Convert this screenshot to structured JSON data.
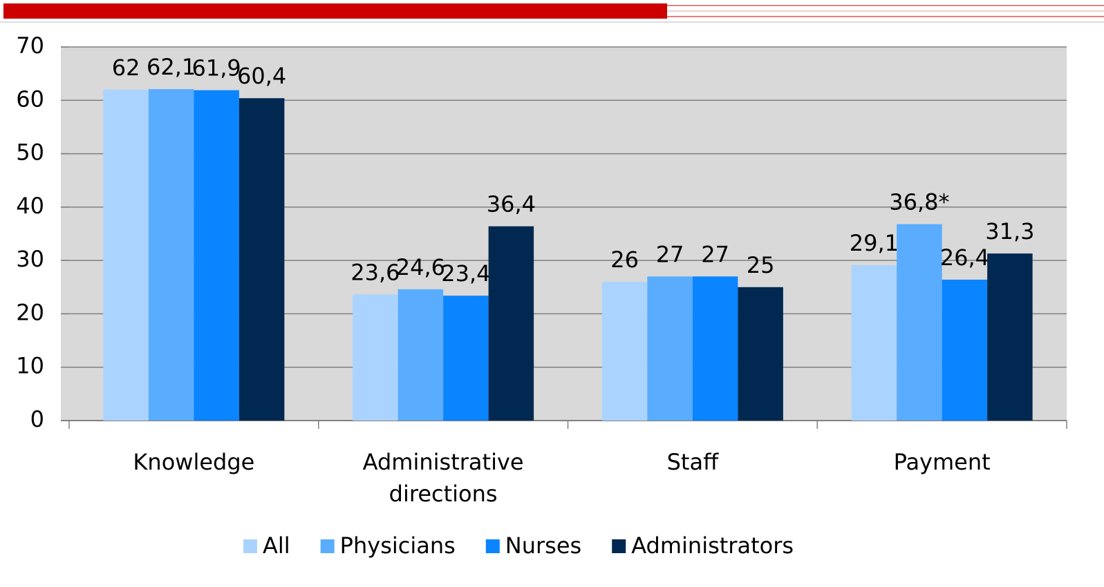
{
  "chart_data": {
    "type": "bar",
    "categories": [
      "Knowledge",
      "Administrative directions",
      "Staff",
      "Payment"
    ],
    "series": [
      {
        "name": "All",
        "color": "#aad4ff",
        "values": [
          62,
          23.6,
          26,
          29.1
        ],
        "value_labels": [
          "62",
          "23,6",
          "26",
          "29,1"
        ]
      },
      {
        "name": "Physicians",
        "color": "#5aacff",
        "values": [
          62.1,
          24.6,
          27,
          36.8
        ],
        "value_labels": [
          "62,1",
          "24,6",
          "27",
          "36,8*"
        ]
      },
      {
        "name": "Nurses",
        "color": "#0a84ff",
        "values": [
          61.9,
          23.4,
          27,
          26.4
        ],
        "value_labels": [
          "61,9",
          "23,4",
          "27",
          "26,4"
        ]
      },
      {
        "name": "Administrators",
        "color": "#002850",
        "values": [
          60.4,
          36.4,
          25,
          31.3
        ],
        "value_labels": [
          "60,4",
          "36,4",
          "25",
          "31,3"
        ]
      }
    ],
    "ylim": [
      0,
      70
    ],
    "yticks": [
      0,
      10,
      20,
      30,
      40,
      50,
      60,
      70
    ],
    "grid": true
  }
}
